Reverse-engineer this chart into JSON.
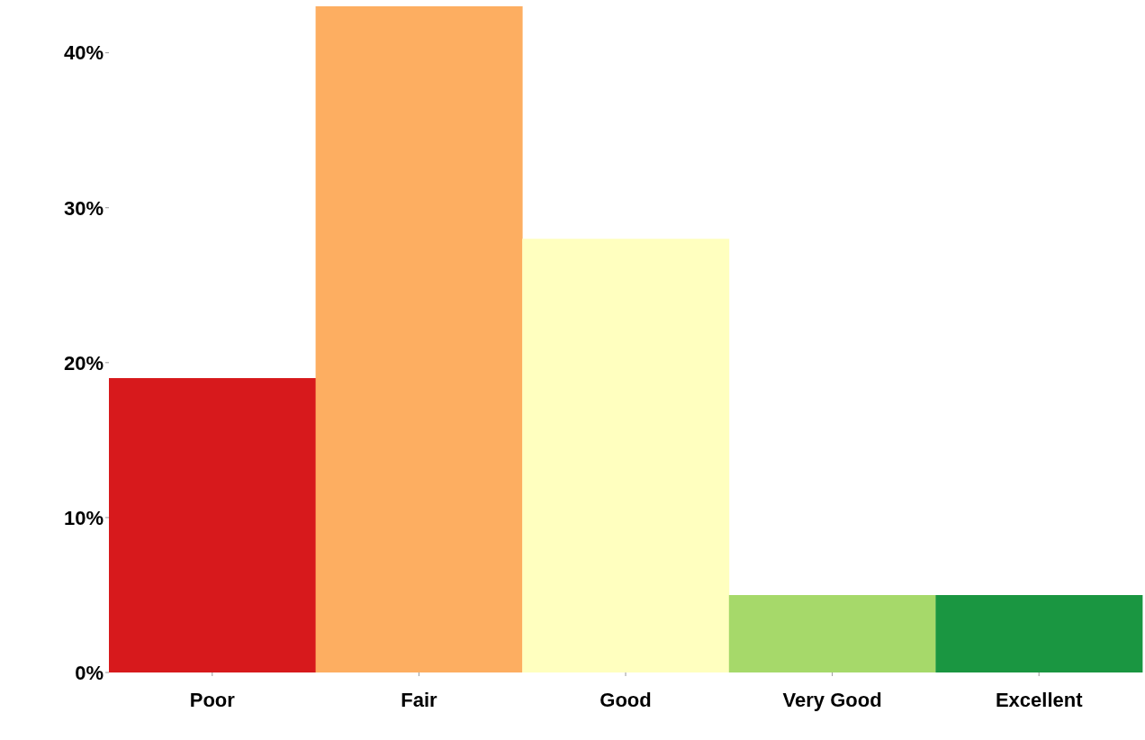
{
  "chart_data": {
    "type": "bar",
    "categories": [
      "Poor",
      "Fair",
      "Good",
      "Very Good",
      "Excellent"
    ],
    "values": [
      19,
      43,
      28,
      5,
      5
    ],
    "colors": [
      "#d7191c",
      "#fdae61",
      "#ffffbf",
      "#a6d96a",
      "#1a9641"
    ],
    "ylim": [
      0,
      43
    ],
    "yticks": [
      {
        "value": 0,
        "label": "0%"
      },
      {
        "value": 10,
        "label": "10%"
      },
      {
        "value": 20,
        "label": "20%"
      },
      {
        "value": 30,
        "label": "30%"
      },
      {
        "value": 40,
        "label": "40%"
      }
    ],
    "grid": false,
    "legend": false
  }
}
